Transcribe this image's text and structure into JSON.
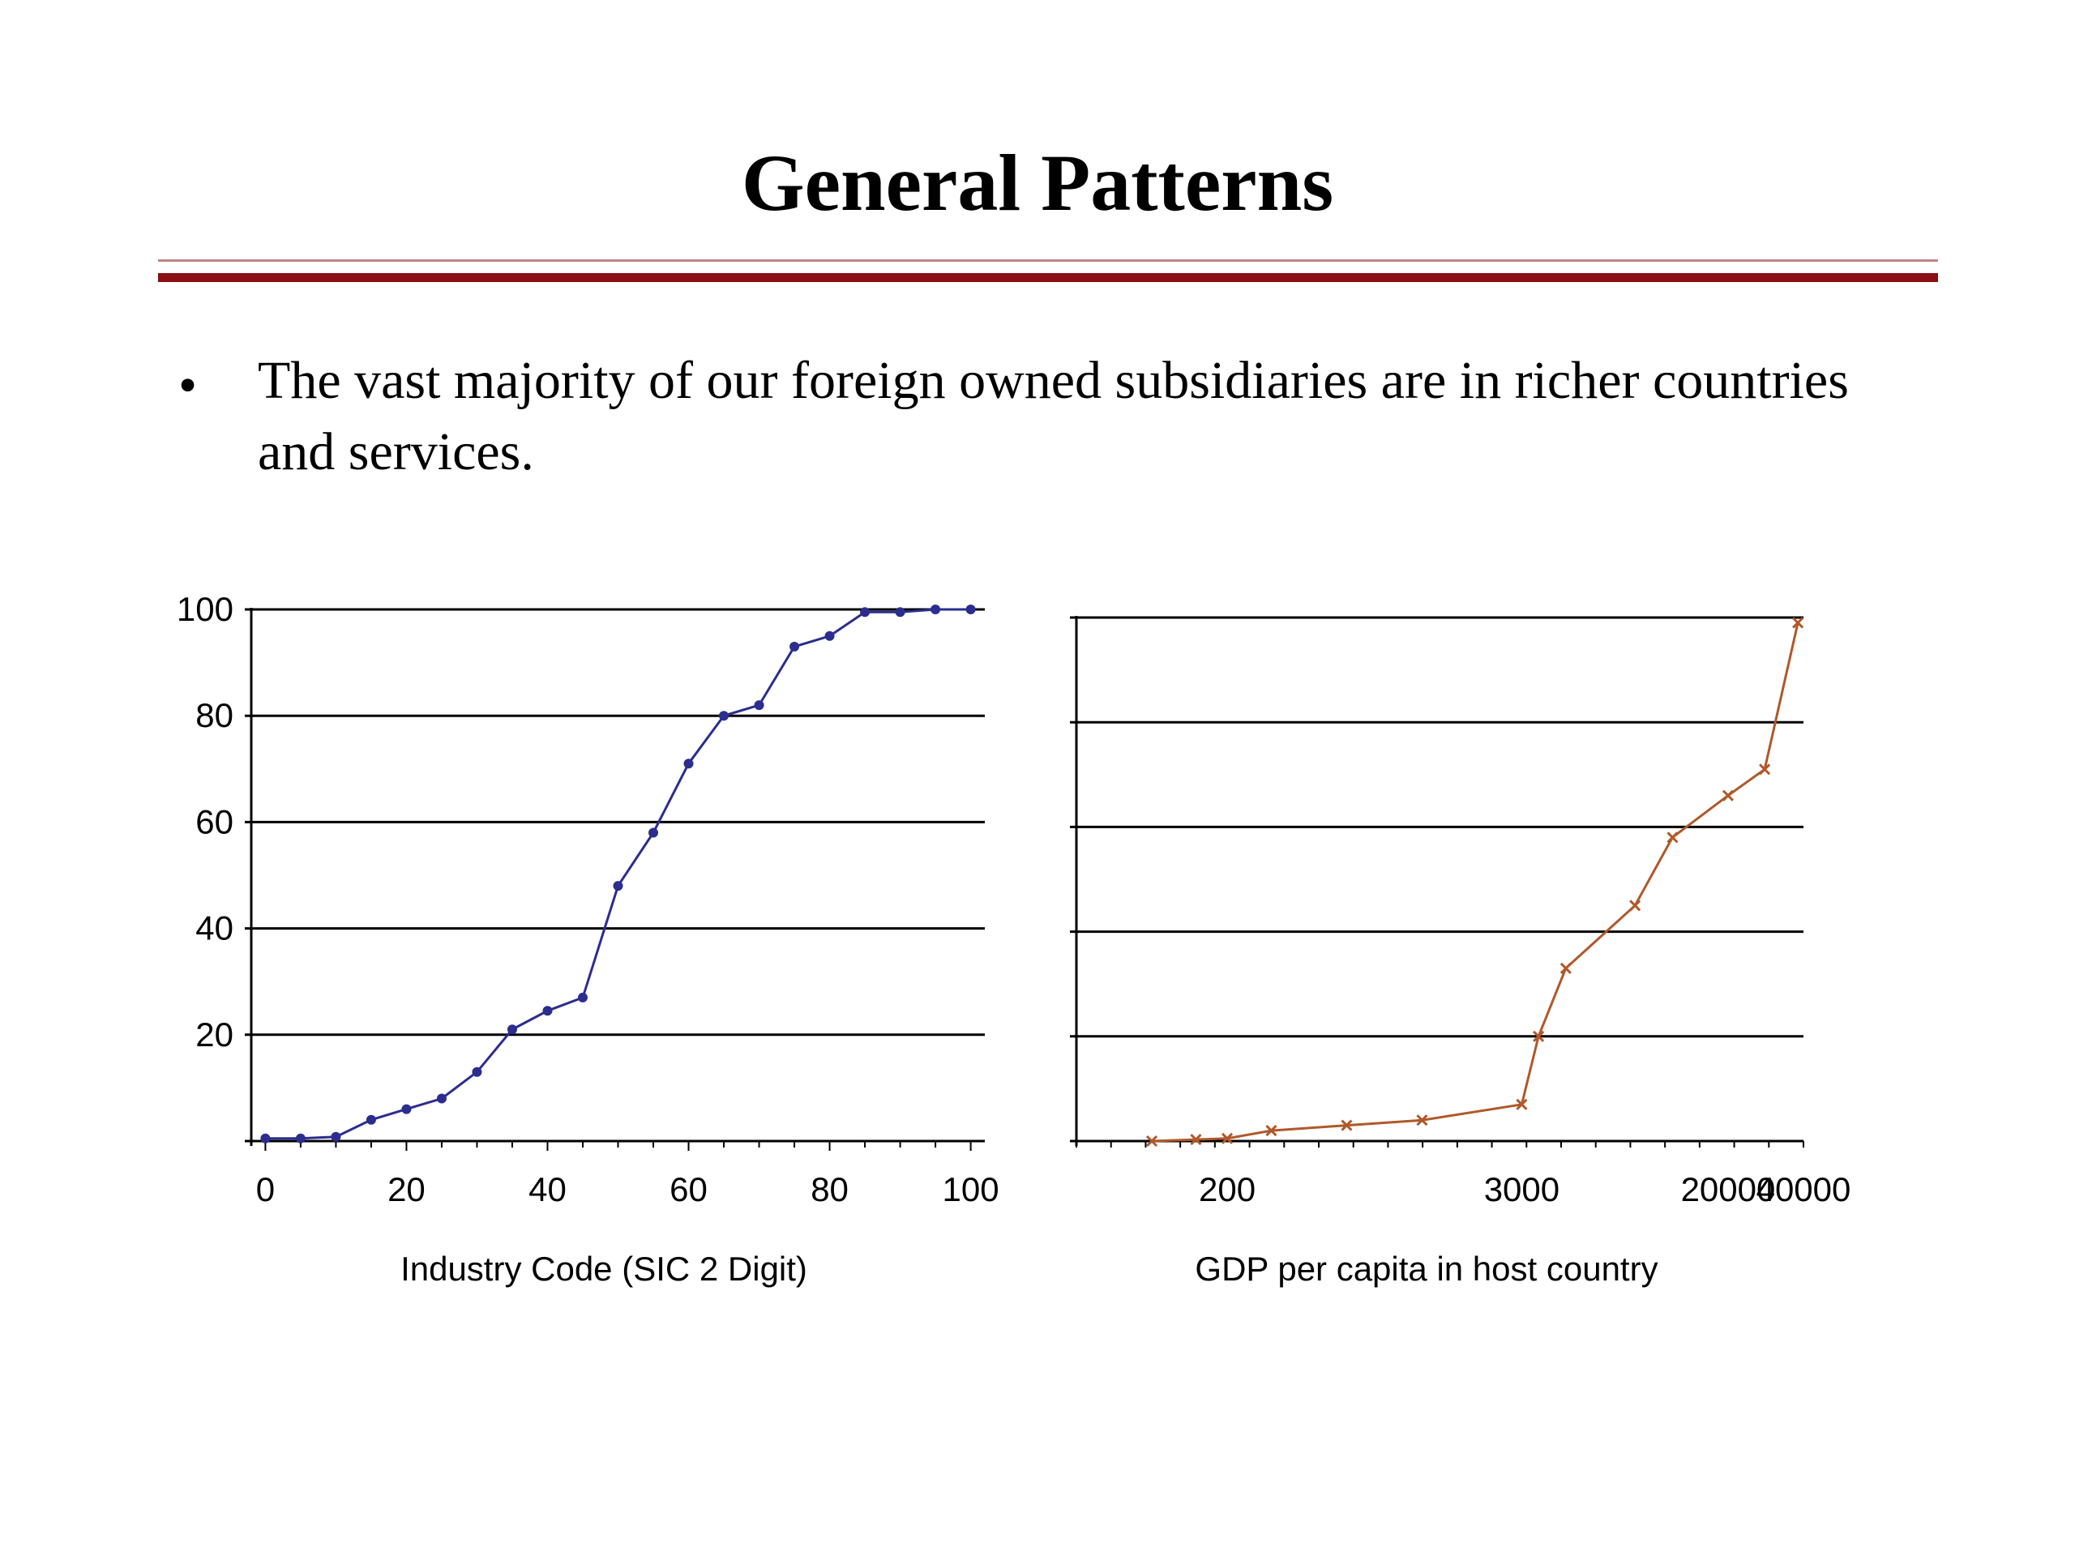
{
  "slide": {
    "title": "General Patterns",
    "bullet": "•",
    "bullet_text": "The vast majority of our foreign owned subsidiaries are in richer countries and services."
  },
  "chart_data": [
    {
      "type": "line",
      "title": "",
      "xlabel": "Industry Code (SIC 2 Digit)",
      "ylabel": "",
      "xlim": [
        -2,
        102
      ],
      "ylim": [
        0,
        100
      ],
      "x_ticks": [
        0,
        20,
        40,
        60,
        80,
        100
      ],
      "x_tick_labels": [
        "0",
        "20",
        "40",
        "60",
        "80",
        "100"
      ],
      "y_ticks": [
        20,
        40,
        60,
        80,
        100
      ],
      "y_tick_labels": [
        "20",
        "40",
        "60",
        "80",
        "100"
      ],
      "grid": "horizontal",
      "color": "#2b2d8f",
      "series": [
        {
          "x": [
            0,
            5,
            10,
            15,
            20,
            25,
            30,
            35,
            40,
            45,
            50,
            55,
            60,
            65,
            70,
            75,
            80,
            85,
            90,
            95,
            100
          ],
          "y": [
            0.5,
            0.5,
            0.8,
            4,
            6,
            8,
            13,
            21,
            24.5,
            27,
            48,
            58,
            71,
            80,
            82,
            93,
            95,
            99.5,
            99.5,
            100,
            100
          ]
        }
      ]
    },
    {
      "type": "line",
      "title": "",
      "xlabel": "GDP per capita in host country",
      "ylabel": "",
      "xscale": "log",
      "xlim": [
        50,
        40000
      ],
      "ylim": [
        0,
        100
      ],
      "x_ticks": [
        200,
        3000,
        20000,
        40000
      ],
      "x_tick_labels": [
        "200",
        "3000",
        "20000",
        "40000"
      ],
      "grid": "horizontal",
      "color": "#b0582a",
      "series": [
        {
          "x": [
            100,
            150,
            200,
            300,
            600,
            1200,
            3000,
            3500,
            4500,
            8500,
            12000,
            20000,
            28000,
            38000
          ],
          "y": [
            0,
            0.3,
            0.5,
            2,
            3,
            4,
            7,
            20,
            33,
            45,
            58,
            66,
            71,
            99
          ]
        }
      ]
    }
  ]
}
